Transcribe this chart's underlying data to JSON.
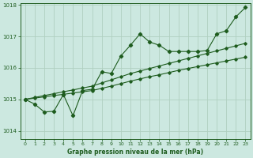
{
  "title": "Graphe pression niveau de la mer (hPa)",
  "background_color": "#cce8e0",
  "grid_color": "#b0d0c0",
  "line_color": "#1e5c1e",
  "xlim": [
    -0.5,
    23.5
  ],
  "ylim": [
    1013.75,
    1018.05
  ],
  "yticks": [
    1014,
    1015,
    1016,
    1017,
    1018
  ],
  "xticks": [
    0,
    1,
    2,
    3,
    4,
    5,
    6,
    7,
    8,
    9,
    10,
    11,
    12,
    13,
    14,
    15,
    16,
    17,
    18,
    19,
    20,
    21,
    22,
    23
  ],
  "series_main": [
    1015.0,
    1014.85,
    1014.6,
    1014.62,
    1015.15,
    1014.48,
    1015.28,
    1015.32,
    1015.88,
    1015.82,
    1016.38,
    1016.72,
    1017.08,
    1016.82,
    1016.72,
    1016.52,
    1016.52,
    1016.52,
    1016.52,
    1016.55,
    1017.08,
    1017.18,
    1017.62,
    1017.92
  ],
  "series_linear1": [
    1015.0,
    1015.04,
    1015.08,
    1015.12,
    1015.16,
    1015.2,
    1015.24,
    1015.28,
    1015.35,
    1015.42,
    1015.5,
    1015.58,
    1015.65,
    1015.72,
    1015.78,
    1015.85,
    1015.92,
    1015.98,
    1016.04,
    1016.1,
    1016.16,
    1016.22,
    1016.28,
    1016.34
  ],
  "series_linear2": [
    1015.0,
    1015.06,
    1015.12,
    1015.18,
    1015.24,
    1015.3,
    1015.36,
    1015.42,
    1015.52,
    1015.62,
    1015.72,
    1015.82,
    1015.9,
    1015.98,
    1016.06,
    1016.14,
    1016.22,
    1016.3,
    1016.38,
    1016.46,
    1016.54,
    1016.62,
    1016.7,
    1016.78
  ]
}
